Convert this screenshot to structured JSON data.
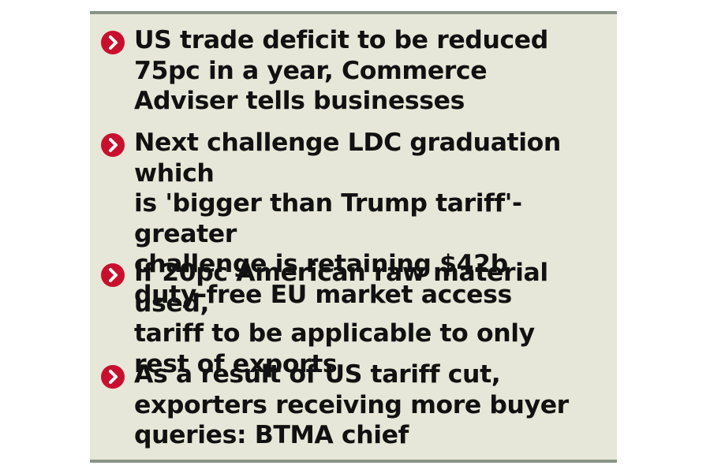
{
  "bullets": [
    {
      "icon": "chevron-right-icon",
      "text": "US trade deficit to be reduced\n75pc in a year, Commerce\nAdviser tells businesses"
    },
    {
      "icon": "chevron-right-icon",
      "text": "Next challenge LDC graduation which\nis 'bigger than Trump tariff'-greater\nchallenge is retaining $42b\nduty-free EU market access"
    },
    {
      "icon": "chevron-right-icon",
      "text": "If 20pc American raw material used,\ntariff to be applicable to only\nrest of exports"
    },
    {
      "icon": "chevron-right-icon",
      "text": "As a result of US tariff cut,\nexporters receiving more buyer\nqueries: BTMA chief"
    }
  ],
  "colors": {
    "background": "#e6e7d8",
    "border": "#8a9486",
    "bullet": "#c8102e",
    "text": "#111111"
  }
}
